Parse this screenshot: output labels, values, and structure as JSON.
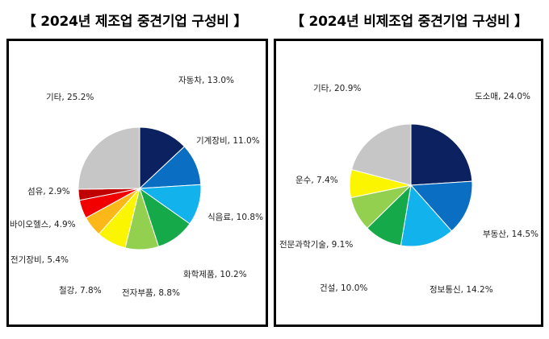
{
  "charts": [
    {
      "title": "【 2024년 제조업 중견기업 구성비 】",
      "chart_data": {
        "type": "pie",
        "title": "2024년 제조업 중견기업 구성비",
        "slices": [
          {
            "label": "자동차",
            "value": 13.0,
            "text": "자동차, 13.0%",
            "color": "#0b2160"
          },
          {
            "label": "기계장비",
            "value": 11.0,
            "text": "기계장비, 11.0%",
            "color": "#0a6fc2"
          },
          {
            "label": "식음료",
            "value": 10.8,
            "text": "식음료, 10.8%",
            "color": "#12b2ec"
          },
          {
            "label": "화학제품",
            "value": 10.2,
            "text": "화학제품, 10.2%",
            "color": "#16a94a"
          },
          {
            "label": "전자부품",
            "value": 8.8,
            "text": "전자부품, 8.8%",
            "color": "#93d050"
          },
          {
            "label": "철강",
            "value": 7.8,
            "text": "철강, 7.8%",
            "color": "#fbf500"
          },
          {
            "label": "전기장비",
            "value": 5.4,
            "text": "전기장비, 5.4%",
            "color": "#fbb818"
          },
          {
            "label": "바이오헬스",
            "value": 4.9,
            "text": "바이오헬스, 4.9%",
            "color": "#f20000"
          },
          {
            "label": "섬유",
            "value": 2.9,
            "text": "섬유, 2.9%",
            "color": "#c00000"
          },
          {
            "label": "기타",
            "value": 25.2,
            "text": "기타, 25.2%",
            "color": "#c6c6c6"
          }
        ]
      }
    },
    {
      "title": "【 2024년 비제조업 중견기업 구성비 】",
      "chart_data": {
        "type": "pie",
        "title": "2024년 비제조업 중견기업 구성비",
        "slices": [
          {
            "label": "도소매",
            "value": 24.0,
            "text": "도소매, 24.0%",
            "color": "#0b2160"
          },
          {
            "label": "부동산",
            "value": 14.5,
            "text": "부동산, 14.5%",
            "color": "#0a6fc2"
          },
          {
            "label": "정보통신",
            "value": 14.2,
            "text": "정보통신, 14.2%",
            "color": "#12b2ec"
          },
          {
            "label": "건설",
            "value": 10.0,
            "text": "건설, 10.0%",
            "color": "#16a94a"
          },
          {
            "label": "전문과학기술",
            "value": 9.1,
            "text": "전문과학기술, 9.1%",
            "color": "#93d050"
          },
          {
            "label": "운수",
            "value": 7.4,
            "text": "운수, 7.4%",
            "color": "#fbf500"
          },
          {
            "label": "기타",
            "value": 20.9,
            "text": "기타, 20.9%",
            "color": "#c6c6c6"
          }
        ]
      }
    }
  ]
}
